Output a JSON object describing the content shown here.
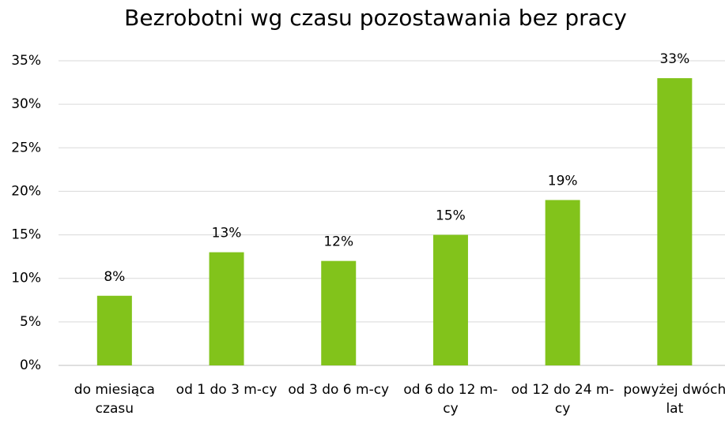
{
  "chart_data": {
    "type": "bar",
    "title": "Bezrobotni wg czasu pozostawania bez pracy",
    "categories": [
      "do miesiąca czasu",
      "od 1 do 3 m-cy",
      "od 3 do 6 m-cy",
      "od 6 do 12 m-cy",
      "od 12 do 24 m-cy",
      "powyżej dwóch lat"
    ],
    "values": [
      8,
      13,
      12,
      15,
      19,
      33
    ],
    "value_labels": [
      "8%",
      "13%",
      "12%",
      "15%",
      "19%",
      "33%"
    ],
    "color": "#82c31b",
    "ylim": [
      0,
      35
    ],
    "yticks": [
      {
        "value": 0,
        "label": "0%"
      },
      {
        "value": 5,
        "label": "5%"
      },
      {
        "value": 10,
        "label": "10%"
      },
      {
        "value": 15,
        "label": "15%"
      },
      {
        "value": 20,
        "label": "20%"
      },
      {
        "value": 25,
        "label": "25%"
      },
      {
        "value": 30,
        "label": "30%"
      },
      {
        "value": 35,
        "label": "35%"
      }
    ],
    "grid": true
  }
}
